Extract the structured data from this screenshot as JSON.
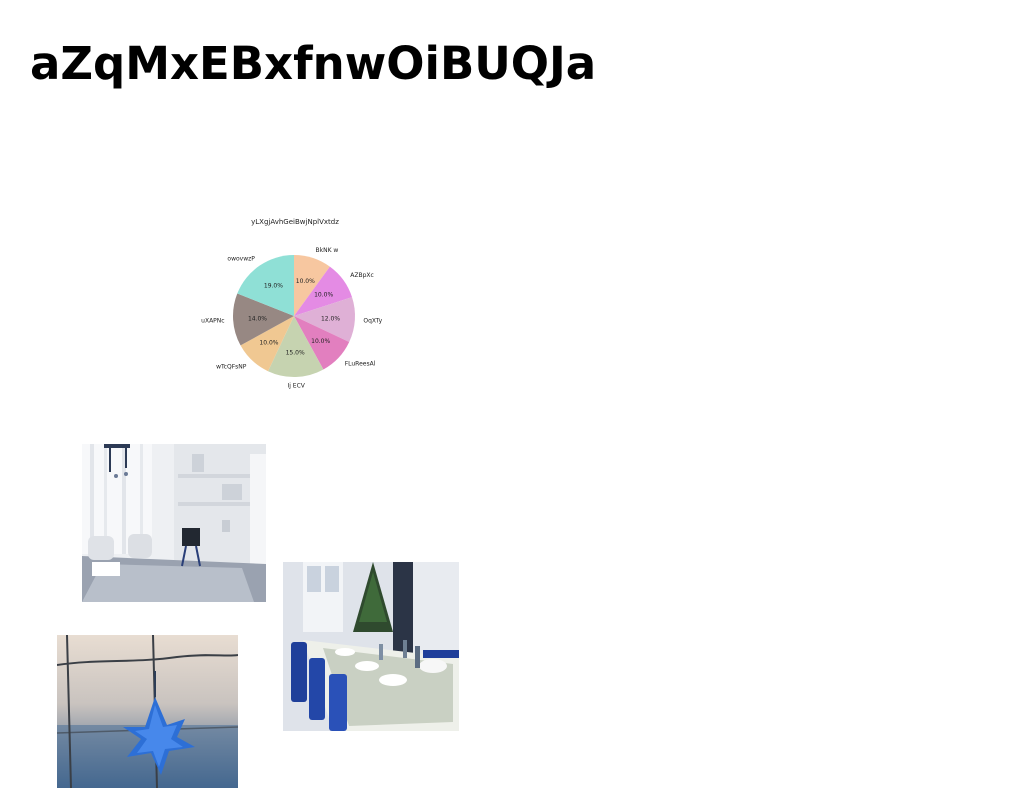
{
  "page": {
    "title": "aZqMxEBxfnwOiBUQJa"
  },
  "chart_data": {
    "type": "pie",
    "title": "yLXgjAvhGeiBwjNplVxtdz",
    "slices": [
      {
        "label": "BkNK w",
        "value": 10.0,
        "pct_label": "10.0%",
        "color": "#f7c7a0"
      },
      {
        "label": "AZBpXc",
        "value": 10.0,
        "pct_label": "10.0%",
        "color": "#e48be4"
      },
      {
        "label": "OqXTy",
        "value": 12.0,
        "pct_label": "12.0%",
        "color": "#dfb0d6"
      },
      {
        "label": "FLuReesAl",
        "value": 10.0,
        "pct_label": "10.0%",
        "color": "#e27fbf"
      },
      {
        "label": "Ij ECV",
        "value": 15.0,
        "pct_label": "15.0%",
        "color": "#c6d3b0"
      },
      {
        "label": "wTcQFsNP",
        "value": 10.0,
        "pct_label": "10.0%",
        "color": "#f0c892"
      },
      {
        "label": "uXAPNc",
        "value": 14.0,
        "pct_label": "14.0%",
        "color": "#978883"
      },
      {
        "label": "owovwzP",
        "value": 19.0,
        "pct_label": "19.0%",
        "color": "#8fe0d6"
      }
    ],
    "start_angle": "top",
    "direction": "clockwise",
    "legend": "none"
  },
  "images": [
    {
      "name": "living-room-photo",
      "description_icon": "interior-photo"
    },
    {
      "name": "dining-table-photo",
      "description_icon": "table-setting-photo"
    },
    {
      "name": "blue-leaf-photo",
      "description_icon": "leaf-photo"
    }
  ]
}
